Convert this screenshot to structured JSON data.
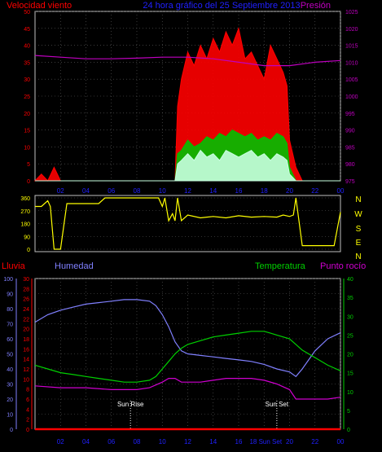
{
  "header": {
    "wind_label": "Velocidad viento",
    "title": "24 hora gráfico del   25 Septiembre 2013",
    "pressure_label": "Presión"
  },
  "lower_header": {
    "rain_label": "Lluvia",
    "humidity_label": "Humedad",
    "temperature_label": "Temperatura",
    "dewpoint_label": "Punto rocío"
  },
  "annotations": {
    "sunrise": "Sun Rise",
    "sunset": "Sun Set",
    "sunset_axis": "18 Sun Set"
  },
  "colors": {
    "wind": "#ff0000",
    "gust": "#00c000",
    "wind_min": "#c8ffe0",
    "pressure": "#c000c0",
    "direction": "#ffff00",
    "humidity": "#8080ff",
    "temperature": "#00d000",
    "dewpoint": "#d000d0",
    "rain": "#ff0000",
    "grid": "#606060"
  },
  "chart_data": [
    {
      "type": "line",
      "name": "wind-pressure",
      "x_ticks": [
        "02",
        "04",
        "06",
        "08",
        "10",
        "12",
        "14",
        "16",
        "18",
        "20",
        "22",
        "00"
      ],
      "xlim": [
        0,
        24
      ],
      "y_left_ticks": [
        "0",
        "5",
        "10",
        "15",
        "20",
        "25",
        "30",
        "35",
        "40",
        "45",
        "50"
      ],
      "ylim_left": [
        0,
        50
      ],
      "y_right_ticks": [
        "975",
        "980",
        "985",
        "990",
        "995",
        "1000",
        "1005",
        "1010",
        "1015",
        "1020",
        "1025"
      ],
      "ylim_right": [
        975,
        1025
      ],
      "series": [
        {
          "name": "Velocidad viento",
          "axis": "left",
          "x": [
            0,
            0.5,
            1,
            1.5,
            2,
            2.5,
            3,
            3.5,
            4,
            4.5,
            5,
            5.5,
            6,
            6.5,
            7,
            7.5,
            8,
            8.5,
            9,
            9.5,
            10,
            10.5,
            11,
            11.2,
            11.5,
            12,
            12.5,
            13,
            13.5,
            14,
            14.5,
            15,
            15.5,
            16,
            16.5,
            17,
            17.5,
            18,
            18.5,
            19,
            19.5,
            19.8,
            20,
            20.5,
            21,
            21.5,
            22,
            22.5,
            23,
            23.5,
            24
          ],
          "y": [
            0,
            2,
            0,
            4,
            0,
            0,
            0,
            0,
            0,
            0,
            0,
            0,
            0,
            0,
            0,
            0,
            0,
            0,
            0,
            0,
            0,
            0,
            0,
            22,
            30,
            38,
            34,
            40,
            36,
            42,
            38,
            44,
            40,
            45,
            36,
            38,
            34,
            30,
            40,
            36,
            32,
            28,
            12,
            4,
            0,
            0,
            0,
            0,
            0,
            0,
            0
          ]
        },
        {
          "name": "Racha",
          "axis": "left",
          "x": [
            0,
            11,
            11.2,
            11.5,
            12,
            12.5,
            13,
            13.5,
            14,
            14.5,
            15,
            15.5,
            16,
            16.5,
            17,
            17.5,
            18,
            18.5,
            19,
            19.5,
            19.8,
            20,
            20.5,
            21,
            24
          ],
          "y": [
            0,
            0,
            8,
            9,
            12,
            10,
            11,
            13,
            12,
            14,
            13,
            15,
            14,
            13,
            14,
            12,
            13,
            12,
            14,
            13,
            11,
            4,
            0,
            0,
            0
          ]
        },
        {
          "name": "Mínimo",
          "axis": "left",
          "x": [
            0,
            11,
            11.2,
            11.5,
            12,
            12.5,
            13,
            13.5,
            14,
            14.5,
            15,
            15.5,
            16,
            16.5,
            17,
            17.5,
            18,
            18.5,
            19,
            19.5,
            19.8,
            20,
            20.5,
            24
          ],
          "y": [
            0,
            0,
            5,
            6,
            8,
            6,
            9,
            7,
            8,
            6,
            9,
            8,
            7,
            8,
            9,
            7,
            8,
            6,
            8,
            7,
            6,
            2,
            0,
            0
          ]
        },
        {
          "name": "Presión",
          "axis": "right",
          "x": [
            0,
            2,
            4,
            6,
            8,
            10,
            12,
            14,
            16,
            18,
            20,
            22,
            24
          ],
          "y": [
            1012,
            1011.5,
            1011,
            1011,
            1011.2,
            1011.5,
            1011.5,
            1011,
            1010,
            1009,
            1009,
            1010,
            1010.5
          ]
        }
      ]
    },
    {
      "type": "line",
      "name": "wind-direction",
      "y_ticks": [
        "0",
        "90",
        "180",
        "270",
        "360"
      ],
      "ylim": [
        0,
        360
      ],
      "right_labels": [
        "N",
        "W",
        "S",
        "E",
        "N"
      ],
      "series": [
        {
          "name": "Dirección",
          "x": [
            0,
            0.5,
            1,
            1.2,
            1.5,
            2,
            2.5,
            3,
            4,
            5,
            5.5,
            6,
            7,
            8,
            9,
            9.7,
            10,
            10.2,
            10.5,
            10.8,
            11,
            11.2,
            11.5,
            12,
            13,
            14,
            15,
            16,
            17,
            18,
            19,
            19.5,
            20,
            20.3,
            20.5,
            21,
            22,
            23,
            23.5,
            24
          ],
          "y": [
            300,
            300,
            340,
            300,
            0,
            0,
            320,
            320,
            320,
            320,
            360,
            360,
            360,
            360,
            360,
            360,
            300,
            360,
            200,
            250,
            200,
            360,
            200,
            240,
            220,
            230,
            220,
            235,
            225,
            230,
            225,
            240,
            230,
            240,
            360,
            25,
            25,
            25,
            25,
            260
          ]
        }
      ]
    },
    {
      "type": "line",
      "name": "humidity-temperature",
      "x_ticks": [
        "02",
        "04",
        "06",
        "08",
        "10",
        "12",
        "14",
        "16",
        "18",
        "20",
        "22",
        "00"
      ],
      "xlim": [
        0,
        24
      ],
      "y_left_outer_ticks": [
        "0",
        "10",
        "20",
        "30",
        "40",
        "50",
        "60",
        "70",
        "80",
        "90",
        "100"
      ],
      "ylim_humidity": [
        0,
        100
      ],
      "y_left_inner_ticks": [
        "0",
        "2",
        "4",
        "6",
        "8",
        "10",
        "12",
        "14",
        "16",
        "18",
        "20",
        "22",
        "24",
        "26",
        "28",
        "30"
      ],
      "ylim_rain": [
        0,
        30
      ],
      "y_right_ticks": [
        "0",
        "5",
        "10",
        "15",
        "20",
        "25",
        "30",
        "35",
        "40"
      ],
      "ylim_temp": [
        0,
        40
      ],
      "series": [
        {
          "name": "Humedad",
          "axis": "humidity",
          "x": [
            0,
            1,
            2,
            3,
            4,
            5,
            6,
            7,
            8,
            9,
            9.5,
            10,
            10.5,
            11,
            11.5,
            12,
            13,
            14,
            15,
            16,
            17,
            18,
            19,
            20,
            20.5,
            21,
            22,
            23,
            24
          ],
          "y": [
            71,
            76,
            79,
            81,
            83,
            84,
            85,
            86,
            86,
            85,
            82,
            76,
            68,
            58,
            52,
            50,
            49,
            48,
            47,
            46,
            45,
            43,
            40,
            38,
            35,
            40,
            52,
            60,
            64
          ]
        },
        {
          "name": "Temperatura",
          "axis": "temp",
          "x": [
            0,
            1,
            2,
            3,
            4,
            5,
            6,
            7,
            8,
            9,
            9.5,
            10,
            10.5,
            11,
            11.5,
            12,
            13,
            14,
            15,
            16,
            17,
            18,
            18.5,
            19,
            20,
            21,
            22,
            23,
            24
          ],
          "y": [
            17,
            16,
            15,
            14.5,
            14,
            13.5,
            13,
            12.5,
            12.5,
            13,
            14,
            16,
            18,
            20,
            21.5,
            22.5,
            23.5,
            24.5,
            25,
            25.5,
            26,
            26,
            25.5,
            25,
            24,
            21,
            19,
            17,
            15.5
          ]
        },
        {
          "name": "Punto rocío",
          "axis": "temp",
          "x": [
            0,
            2,
            4,
            6,
            8,
            9,
            10,
            10.5,
            11,
            11.5,
            12,
            13,
            14,
            15,
            16,
            17,
            18,
            19,
            20,
            20.5,
            21,
            22,
            23,
            24
          ],
          "y": [
            11.5,
            11,
            11,
            10.5,
            10.5,
            11,
            12.5,
            13.5,
            13.5,
            12.5,
            12.5,
            12.5,
            13,
            13.5,
            13.5,
            13.5,
            13,
            12,
            10.5,
            8,
            8,
            8,
            8,
            8.5
          ]
        },
        {
          "name": "Lluvia",
          "axis": "rain",
          "x": [
            0,
            24
          ],
          "y": [
            0,
            0
          ]
        }
      ]
    }
  ]
}
